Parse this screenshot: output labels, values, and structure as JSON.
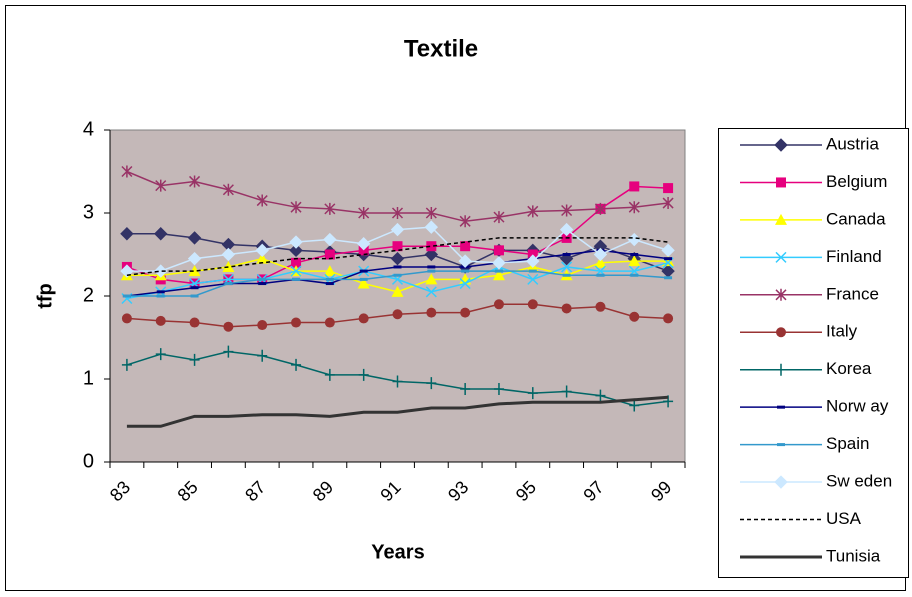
{
  "chart_data": {
    "type": "line",
    "title": "Textile",
    "x_label": "Years",
    "y_label": "tfp",
    "categories": [
      "83",
      null,
      "85",
      null,
      "87",
      null,
      "89",
      null,
      "91",
      null,
      "93",
      null,
      "95",
      null,
      "97",
      null,
      "99"
    ],
    "ylim": [
      0,
      4
    ],
    "yticks": [
      0,
      1,
      2,
      3,
      4
    ],
    "grid": false,
    "legend": "right",
    "plot_background": "#c4b8b8",
    "series": [
      {
        "name": "Austria",
        "color": "#333366",
        "marker": "diamond",
        "values": [
          2.75,
          2.75,
          2.7,
          2.62,
          2.6,
          2.55,
          2.53,
          2.5,
          2.45,
          2.5,
          2.35,
          2.55,
          2.55,
          2.45,
          2.6,
          2.45,
          2.3
        ]
      },
      {
        "name": "Belgium",
        "color": "#e6007e",
        "marker": "square",
        "values": [
          2.35,
          2.2,
          2.15,
          2.2,
          2.2,
          2.4,
          2.5,
          2.55,
          2.6,
          2.6,
          2.6,
          2.55,
          2.5,
          2.7,
          3.05,
          3.32,
          3.3
        ]
      },
      {
        "name": "Canada",
        "color": "#ffff00",
        "marker": "triangle",
        "values": [
          2.25,
          2.25,
          2.3,
          2.35,
          2.45,
          2.3,
          2.3,
          2.15,
          2.05,
          2.2,
          2.2,
          2.25,
          2.35,
          2.25,
          2.4,
          2.42,
          2.42
        ]
      },
      {
        "name": "Finland",
        "color": "#33ccff",
        "marker": "x",
        "values": [
          1.97,
          2.05,
          2.15,
          2.2,
          2.2,
          2.3,
          2.2,
          2.3,
          2.2,
          2.05,
          2.15,
          2.35,
          2.2,
          2.35,
          2.3,
          2.3,
          2.4
        ]
      },
      {
        "name": "France",
        "color": "#993366",
        "marker": "star",
        "values": [
          3.5,
          3.33,
          3.38,
          3.28,
          3.15,
          3.07,
          3.05,
          3.0,
          3.0,
          3.0,
          2.9,
          2.95,
          3.02,
          3.03,
          3.05,
          3.07,
          3.12
        ]
      },
      {
        "name": "Italy",
        "color": "#993333",
        "marker": "circle",
        "values": [
          1.73,
          1.7,
          1.68,
          1.63,
          1.65,
          1.68,
          1.68,
          1.73,
          1.78,
          1.8,
          1.8,
          1.9,
          1.9,
          1.85,
          1.87,
          1.75,
          1.73
        ]
      },
      {
        "name": "Korea",
        "color": "#006666",
        "marker": "plus",
        "values": [
          1.17,
          1.3,
          1.23,
          1.33,
          1.28,
          1.17,
          1.05,
          1.05,
          0.97,
          0.95,
          0.88,
          0.88,
          0.83,
          0.85,
          0.8,
          0.68,
          0.73
        ]
      },
      {
        "name": "Norw ay",
        "color": "#000080",
        "marker": "dash",
        "values": [
          2.0,
          2.05,
          2.1,
          2.15,
          2.15,
          2.2,
          2.15,
          2.3,
          2.35,
          2.35,
          2.35,
          2.4,
          2.45,
          2.5,
          2.55,
          2.5,
          2.45
        ]
      },
      {
        "name": "Spain",
        "color": "#3399cc",
        "marker": "dash",
        "values": [
          2.0,
          2.0,
          2.0,
          2.15,
          2.2,
          2.2,
          2.2,
          2.2,
          2.25,
          2.3,
          2.3,
          2.3,
          2.3,
          2.25,
          2.25,
          2.25,
          2.22
        ]
      },
      {
        "name": "Sw eden",
        "color": "#cce8ff",
        "marker": "diamond",
        "values": [
          2.3,
          2.3,
          2.45,
          2.5,
          2.55,
          2.65,
          2.68,
          2.63,
          2.8,
          2.83,
          2.42,
          2.4,
          2.42,
          2.8,
          2.5,
          2.68,
          2.55
        ]
      },
      {
        "name": "USA",
        "color": "#000000",
        "marker": "none",
        "dashed": true,
        "values": [
          2.25,
          2.3,
          2.3,
          2.35,
          2.4,
          2.45,
          2.45,
          2.5,
          2.55,
          2.6,
          2.65,
          2.7,
          2.7,
          2.7,
          2.7,
          2.7,
          2.65
        ]
      },
      {
        "name": "Tunisia",
        "color": "#333333",
        "marker": "none",
        "width": 3,
        "values": [
          0.43,
          0.43,
          0.55,
          0.55,
          0.57,
          0.57,
          0.55,
          0.6,
          0.6,
          0.65,
          0.65,
          0.7,
          0.72,
          0.72,
          0.72,
          0.75,
          0.78
        ]
      }
    ]
  }
}
